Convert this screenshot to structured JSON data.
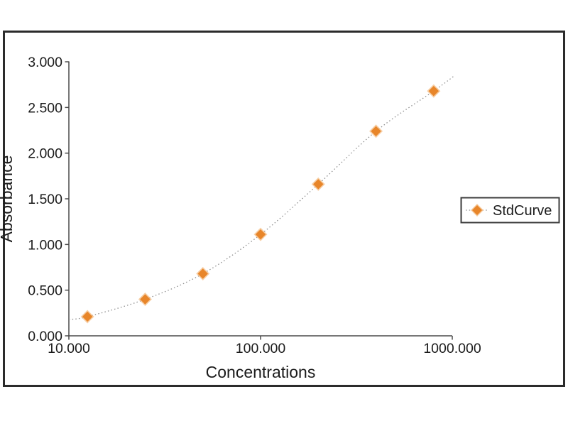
{
  "chart_data": {
    "type": "scatter",
    "title": "",
    "xlabel": "Concentrations",
    "ylabel": "Absorbance",
    "x_scale": "log",
    "grid": false,
    "xlim": [
      10,
      1000
    ],
    "ylim": [
      0.0,
      3.0
    ],
    "x_ticks": [
      "10.000",
      "100.000",
      "1000.000"
    ],
    "y_ticks": [
      "0.000",
      "0.500",
      "1.000",
      "1.500",
      "2.000",
      "2.500",
      "3.000"
    ],
    "series": [
      {
        "name": "StdCurve",
        "x": [
          12.5,
          25,
          50,
          100,
          200,
          400,
          800
        ],
        "y": [
          0.21,
          0.4,
          0.68,
          1.11,
          1.66,
          2.24,
          2.68
        ],
        "marker": "diamond",
        "line_style": "dotted"
      }
    ],
    "fit_curve_extension": {
      "left": {
        "x": 10,
        "y": 0.18
      },
      "right": {
        "x": 1030,
        "y": 2.85
      }
    },
    "legend": {
      "position": "right",
      "labels": [
        "StdCurve"
      ]
    }
  },
  "colors": {
    "background": "#ffffff",
    "panel_border": "#2b2b2b",
    "axis_line": "#4a4a4a",
    "tick_text": "#1b1b1b",
    "fit_line": "#8f8f8f",
    "marker_core": "#E8862A",
    "marker_halo": "#F4BE86",
    "legend_border": "#3c3c3c",
    "legend_background": "#ffffff"
  }
}
